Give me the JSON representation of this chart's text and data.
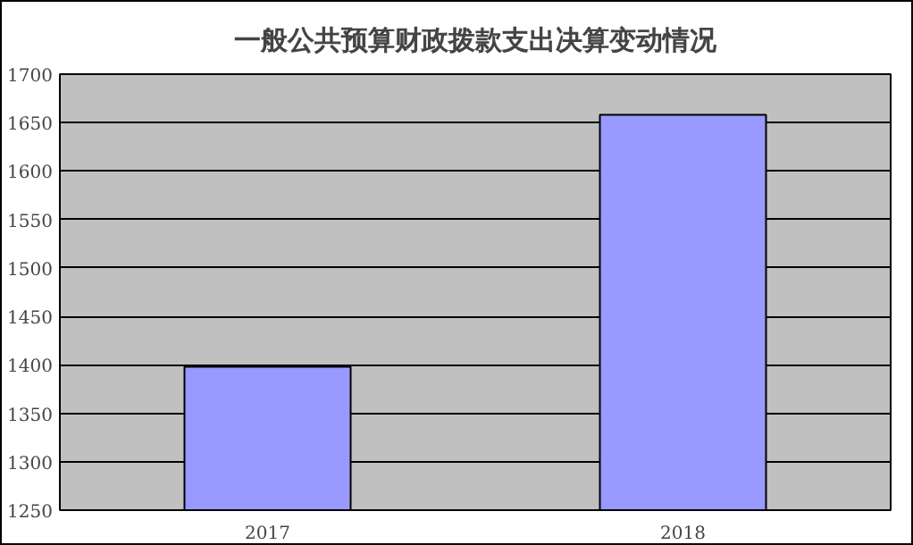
{
  "chart_data": {
    "type": "bar",
    "title": "一般公共预算财政拨款支出决算变动情况",
    "categories": [
      "2017",
      "2018"
    ],
    "values": [
      1398,
      1658
    ],
    "color": "#9999ff",
    "ylim": [
      1250,
      1700
    ],
    "yticks": [
      1250,
      1300,
      1350,
      1400,
      1450,
      1500,
      1550,
      1600,
      1650,
      1700
    ],
    "grid": "y"
  }
}
